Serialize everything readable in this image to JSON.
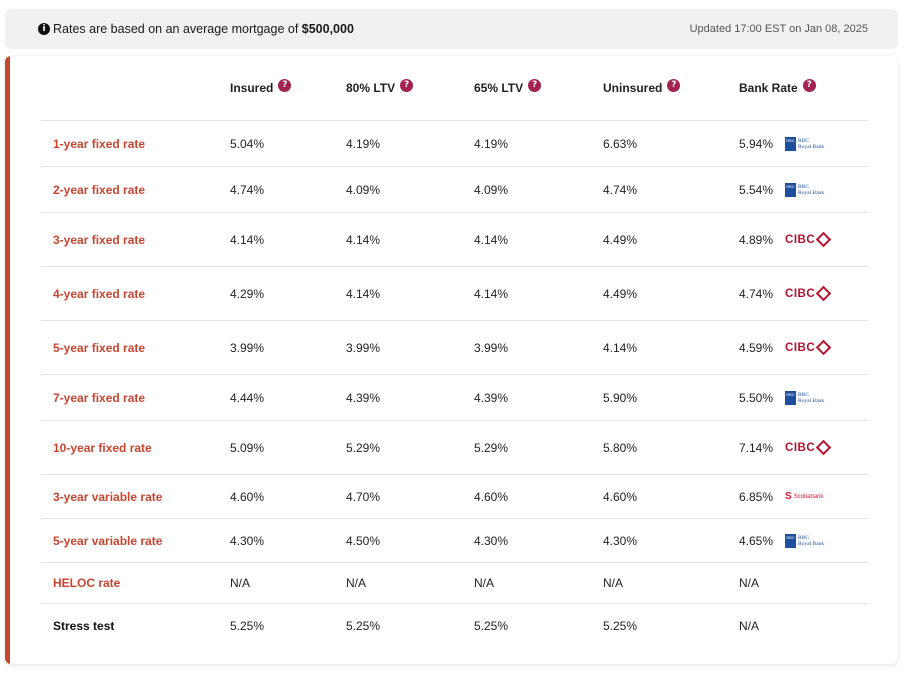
{
  "banner": {
    "info_icon": "i",
    "text_prefix": "Rates are based on an average mortgage of ",
    "amount": "$500,000",
    "updated": "Updated 17:00 EST on Jan 08, 2025"
  },
  "headers": [
    "Insured",
    "80% LTV",
    "65% LTV",
    "Uninsured",
    "Bank Rate"
  ],
  "help_glyph": "?",
  "colors": {
    "accent": "#c74630",
    "help": "#a3224f",
    "rbc": "#1d4f9e",
    "cibc": "#b5122e",
    "scotia": "#e31837"
  },
  "rows": [
    {
      "label": "1-year fixed rate",
      "values": [
        "5.04%",
        "4.19%",
        "4.19%",
        "6.63%",
        "5.94%"
      ],
      "bank": "rbc"
    },
    {
      "label": "2-year fixed rate",
      "values": [
        "4.74%",
        "4.09%",
        "4.09%",
        "4.74%",
        "5.54%"
      ],
      "bank": "rbc"
    },
    {
      "label": "3-year fixed rate",
      "values": [
        "4.14%",
        "4.14%",
        "4.14%",
        "4.49%",
        "4.89%"
      ],
      "bank": "cibc"
    },
    {
      "label": "4-year fixed rate",
      "values": [
        "4.29%",
        "4.14%",
        "4.14%",
        "4.49%",
        "4.74%"
      ],
      "bank": "cibc"
    },
    {
      "label": "5-year fixed rate",
      "values": [
        "3.99%",
        "3.99%",
        "3.99%",
        "4.14%",
        "4.59%"
      ],
      "bank": "cibc"
    },
    {
      "label": "7-year fixed rate",
      "values": [
        "4.44%",
        "4.39%",
        "4.39%",
        "5.90%",
        "5.50%"
      ],
      "bank": "rbc"
    },
    {
      "label": "10-year fixed rate",
      "values": [
        "5.09%",
        "5.29%",
        "5.29%",
        "5.80%",
        "7.14%"
      ],
      "bank": "cibc"
    },
    {
      "label": "3-year variable rate",
      "values": [
        "4.60%",
        "4.70%",
        "4.60%",
        "4.60%",
        "6.85%"
      ],
      "bank": "scotia"
    },
    {
      "label": "5-year variable rate",
      "values": [
        "4.30%",
        "4.50%",
        "4.30%",
        "4.30%",
        "4.65%"
      ],
      "bank": "rbc"
    },
    {
      "label": "HELOC rate",
      "values": [
        "N/A",
        "N/A",
        "N/A",
        "N/A",
        "N/A"
      ],
      "bank": ""
    },
    {
      "label": "Stress test",
      "values": [
        "5.25%",
        "5.25%",
        "5.25%",
        "5.25%",
        "N/A"
      ],
      "bank": ""
    }
  ],
  "logos": {
    "rbc": {
      "box": "RBC",
      "line1": "RBC",
      "line2": "Royal Bank"
    },
    "cibc": {
      "text": "CIBC"
    },
    "scotia": {
      "mark": "S",
      "text": "Scotiabank"
    }
  }
}
